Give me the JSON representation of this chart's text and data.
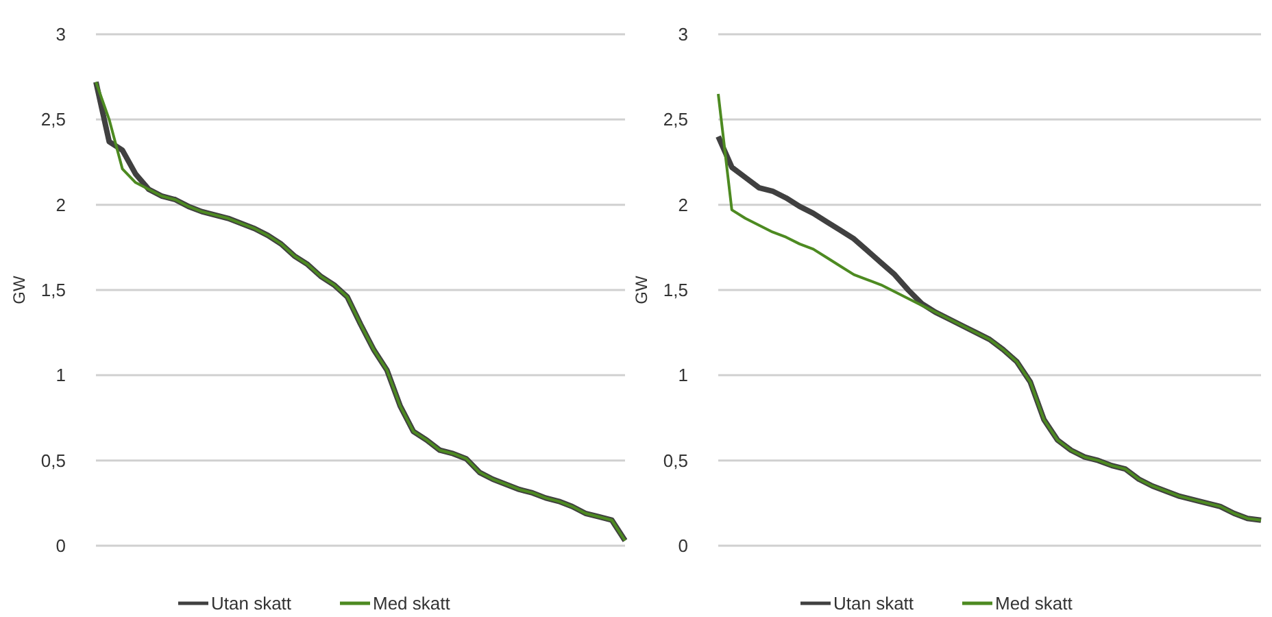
{
  "chart_data": [
    {
      "type": "line",
      "ylabel": "GW",
      "categories": [
        null,
        null,
        null,
        null,
        null,
        null,
        null,
        null,
        null,
        null,
        null,
        null,
        null,
        null,
        null,
        null,
        null,
        null,
        null,
        null,
        null,
        null,
        null,
        null,
        null,
        null,
        null,
        null,
        null,
        null,
        null,
        null,
        null,
        null,
        null,
        null,
        null,
        null,
        null,
        null,
        null
      ],
      "ylim": [
        0,
        3
      ],
      "yticks": [
        0,
        {
          "value": 0.5,
          "label": "0,5"
        },
        1,
        {
          "value": 1.5,
          "label": "1,5"
        },
        2,
        {
          "value": 2.5,
          "label": "2,5"
        },
        3
      ],
      "grid": "y",
      "legend": "bottom",
      "tick_labels": "y",
      "series": [
        {
          "name": "Utan skatt",
          "color": "#404040",
          "values": [
            2.72,
            2.37,
            2.32,
            2.18,
            2.09,
            2.05,
            2.03,
            1.99,
            1.96,
            1.94,
            1.92,
            1.89,
            1.86,
            1.82,
            1.77,
            1.7,
            1.65,
            1.58,
            1.53,
            1.46,
            1.3,
            1.15,
            1.03,
            0.82,
            0.67,
            0.62,
            0.56,
            0.54,
            0.51,
            0.43,
            0.39,
            0.36,
            0.33,
            0.31,
            0.28,
            0.26,
            0.23,
            0.19,
            0.17,
            0.15,
            0.03
          ]
        },
        {
          "name": "Med skatt",
          "color": "#4d8a21",
          "values": [
            2.72,
            2.5,
            2.21,
            2.13,
            2.09,
            2.05,
            2.03,
            1.99,
            1.96,
            1.94,
            1.92,
            1.89,
            1.86,
            1.82,
            1.77,
            1.7,
            1.65,
            1.58,
            1.53,
            1.46,
            1.3,
            1.15,
            1.03,
            0.82,
            0.67,
            0.62,
            0.56,
            0.54,
            0.51,
            0.43,
            0.39,
            0.36,
            0.33,
            0.31,
            0.28,
            0.26,
            0.23,
            0.19,
            0.17,
            0.15,
            0.03
          ]
        }
      ]
    },
    {
      "type": "line",
      "ylabel": "GW",
      "categories": [
        null,
        null,
        null,
        null,
        null,
        null,
        null,
        null,
        null,
        null,
        null,
        null,
        null,
        null,
        null,
        null,
        null,
        null,
        null,
        null,
        null,
        null,
        null,
        null,
        null,
        null,
        null,
        null,
        null,
        null,
        null,
        null,
        null,
        null,
        null,
        null,
        null,
        null,
        null,
        null,
        null
      ],
      "ylim": [
        0,
        3
      ],
      "yticks": [
        0,
        {
          "value": 0.5,
          "label": "0,5"
        },
        1,
        {
          "value": 1.5,
          "label": "1,5"
        },
        2,
        {
          "value": 2.5,
          "label": "2,5"
        },
        3
      ],
      "grid": "y",
      "legend": "bottom",
      "tick_labels": "y",
      "series": [
        {
          "name": "Utan skatt",
          "color": "#404040",
          "values": [
            2.4,
            2.22,
            2.16,
            2.1,
            2.08,
            2.04,
            1.99,
            1.95,
            1.9,
            1.85,
            1.8,
            1.73,
            1.66,
            1.59,
            1.5,
            1.42,
            1.37,
            1.33,
            1.29,
            1.25,
            1.21,
            1.15,
            1.08,
            0.96,
            0.74,
            0.62,
            0.56,
            0.52,
            0.5,
            0.47,
            0.45,
            0.39,
            0.35,
            0.32,
            0.29,
            0.27,
            0.25,
            0.23,
            0.19,
            0.16,
            0.15
          ]
        },
        {
          "name": "Med skatt",
          "color": "#4d8a21",
          "values": [
            2.65,
            1.97,
            1.92,
            1.88,
            1.84,
            1.81,
            1.77,
            1.74,
            1.69,
            1.64,
            1.59,
            1.56,
            1.53,
            1.49,
            1.45,
            1.41,
            1.37,
            1.33,
            1.29,
            1.25,
            1.21,
            1.15,
            1.08,
            0.96,
            0.74,
            0.62,
            0.56,
            0.52,
            0.5,
            0.47,
            0.45,
            0.39,
            0.35,
            0.32,
            0.29,
            0.27,
            0.25,
            0.23,
            0.19,
            0.16,
            0.15
          ]
        }
      ]
    }
  ]
}
